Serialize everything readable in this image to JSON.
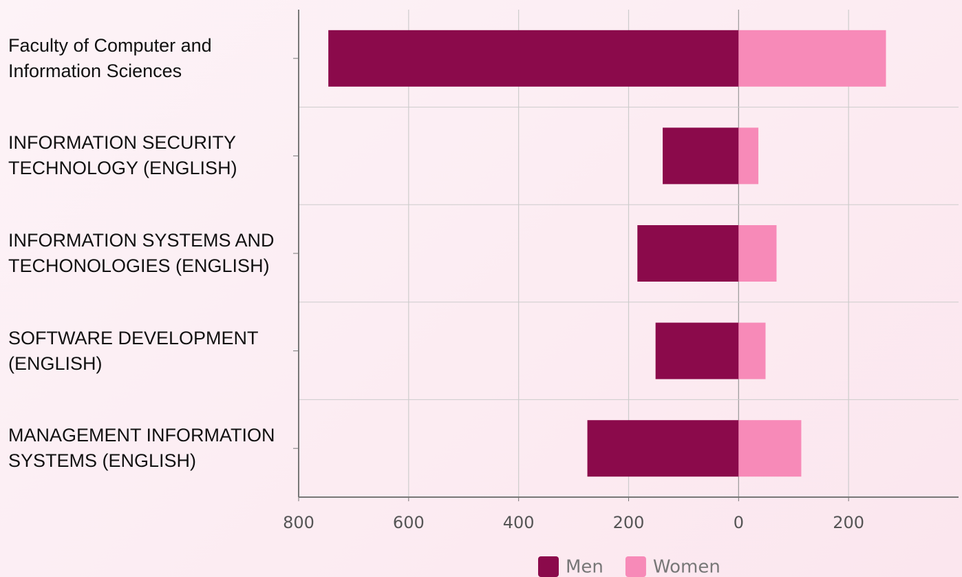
{
  "chart_data": {
    "type": "diverging-bar",
    "categories": [
      "Faculty of Computer and Information Sciences",
      "INFORMATION SECURITY TECHNOLOGY (ENGLISH)",
      "INFORMATION SYSTEMS AND TECHONOLOGIES (ENGLISH)",
      "SOFTWARE DEVELOPMENT (ENGLISH)",
      "MANAGEMENT INFORMATION SYSTEMS (ENGLISH)"
    ],
    "series": [
      {
        "name": "Men",
        "color": "#8b0a4b",
        "values": [
          -746,
          -138,
          -184,
          -151,
          -275
        ]
      },
      {
        "name": "Women",
        "color": "#f78ab8",
        "values": [
          268,
          36,
          69,
          49,
          114
        ]
      }
    ],
    "xlim": [
      -800,
      400
    ],
    "xticks": [
      {
        "value": -800,
        "label": "800"
      },
      {
        "value": -600,
        "label": "600"
      },
      {
        "value": -400,
        "label": "400"
      },
      {
        "value": -200,
        "label": "200"
      },
      0,
      200
    ],
    "grid": true
  }
}
